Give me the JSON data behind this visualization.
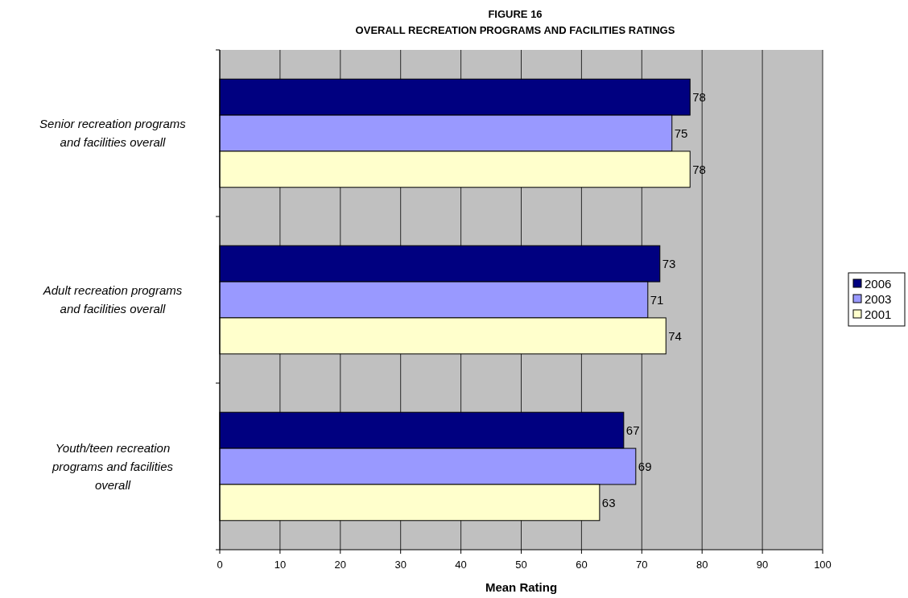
{
  "chart_data": {
    "type": "bar",
    "orientation": "horizontal",
    "title": "FIGURE 16",
    "subtitle": "OVERALL RECREATION PROGRAMS AND FACILITIES RATINGS",
    "xlabel": "Mean Rating",
    "categories": [
      "Senior recreation programs and facilities overall",
      "Adult recreation programs and facilities overall",
      "Youth/teen recreation programs and facilities overall"
    ],
    "series": [
      {
        "name": "2006",
        "color": "#000080",
        "values": [
          78,
          73,
          67
        ]
      },
      {
        "name": "2003",
        "color": "#9999ff",
        "values": [
          75,
          71,
          69
        ]
      },
      {
        "name": "2001",
        "color": "#ffffcc",
        "values": [
          78,
          74,
          63
        ]
      }
    ],
    "xlim": [
      0,
      100
    ],
    "xticks": [
      0,
      10,
      20,
      30,
      40,
      50,
      60,
      70,
      80,
      90,
      100
    ],
    "grid": "x",
    "legend": "right",
    "data_labels": true
  }
}
